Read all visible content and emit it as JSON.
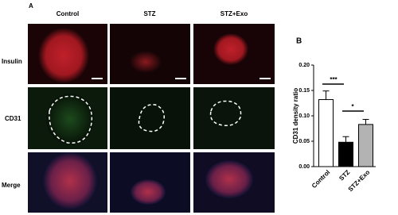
{
  "figure": {
    "panel_a": "A",
    "columns": [
      "Control",
      "STZ",
      "STZ+Exo"
    ],
    "rows": [
      "Insulin",
      "CD31",
      "Merge"
    ]
  },
  "chart_data": {
    "type": "bar",
    "panel": "B",
    "ylabel": "CD31 density ratio",
    "categories": [
      "Control",
      "STZ",
      "STZ+Exo"
    ],
    "values": [
      0.132,
      0.048,
      0.083
    ],
    "errors": [
      0.017,
      0.011,
      0.01
    ],
    "colors": [
      "#ffffff",
      "#000000",
      "#b3b3b3"
    ],
    "ylim": [
      0,
      0.2
    ],
    "yticks": [
      {
        "value": 0,
        "label": "0.00"
      },
      {
        "value": 0.05,
        "label": "0.05"
      },
      {
        "value": 0.1,
        "label": "0.10"
      },
      {
        "value": 0.15,
        "label": "0.15"
      },
      {
        "value": 0.2,
        "label": "0.20"
      }
    ],
    "annotations": [
      "***",
      "*"
    ]
  }
}
